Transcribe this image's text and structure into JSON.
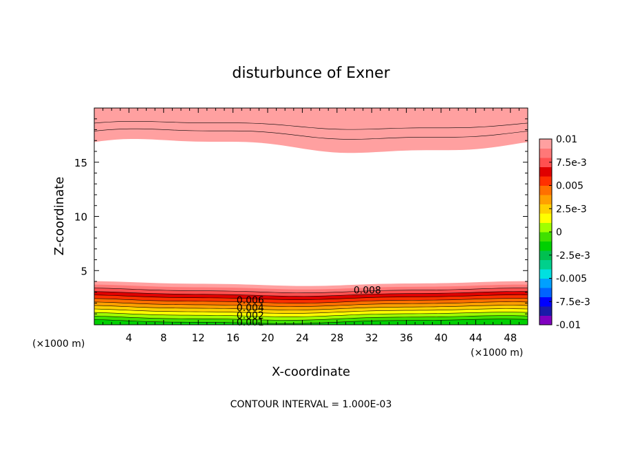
{
  "chart_data": {
    "type": "contour",
    "title": "disturbunce of Exner",
    "xlabel": "X-coordinate",
    "ylabel": "Z-coordinate",
    "x_unit": "(×1000 m)",
    "x_unit_right": "(×1000 m)",
    "footer": "CONTOUR INTERVAL = 1.000E-03",
    "xlim": [
      0,
      50
    ],
    "ylim": [
      0,
      20
    ],
    "x_ticks": [
      4,
      8,
      12,
      16,
      20,
      24,
      28,
      32,
      36,
      40,
      44,
      48
    ],
    "x_tick_labels": [
      "4",
      "8",
      "12",
      "16",
      "20",
      "24",
      "28",
      "32",
      "36",
      "40",
      "44",
      "48"
    ],
    "y_ticks": [
      5,
      10,
      15
    ],
    "y_tick_labels": [
      "5",
      "10",
      "15"
    ],
    "contour_interval": 0.001,
    "contour_labels": [
      {
        "text": "0.008",
        "x": 31.5,
        "z": 3.2
      },
      {
        "text": "0.006",
        "x": 18.0,
        "z": 2.3
      },
      {
        "text": "0.004",
        "x": 18.0,
        "z": 1.6
      },
      {
        "text": "0.002",
        "x": 18.0,
        "z": 0.9
      },
      {
        "text": "0.001",
        "x": 18.0,
        "z": 0.25
      }
    ],
    "colorbar": {
      "labels": [
        "0.01",
        "7.5e-3",
        "0.005",
        "2.5e-3",
        "0",
        "-2.5e-3",
        "-0.005",
        "-7.5e-3",
        "-0.01"
      ],
      "min": -0.01,
      "max": 0.01,
      "colors": [
        "#8000c0",
        "#1a1aa8",
        "#0000ff",
        "#0064ff",
        "#00a0ff",
        "#00e0e0",
        "#00d08c",
        "#00c050",
        "#00d000",
        "#40e000",
        "#a0ff00",
        "#ffff00",
        "#ffd000",
        "#ffa000",
        "#ff7000",
        "#ff3000",
        "#e00000",
        "#ff5050",
        "#ff7878",
        "#ffa0a0"
      ]
    },
    "bands": {
      "top_red_upper_z": 18.3,
      "top_red_lower_z": 16.5,
      "bottom_edge_z": 3.8
    }
  }
}
